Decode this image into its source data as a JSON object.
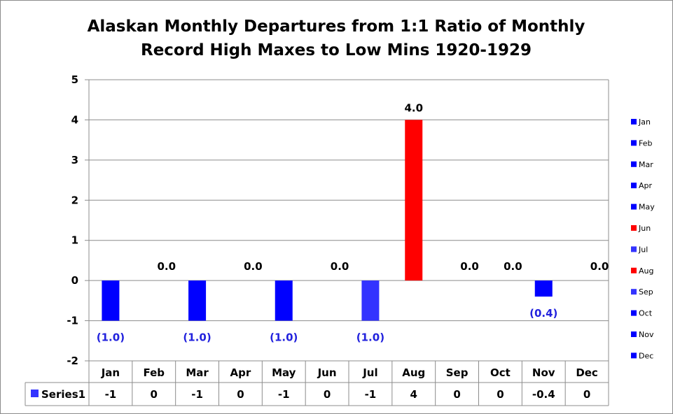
{
  "chart_data": {
    "type": "bar",
    "title": "Alaskan Monthly Departures from 1:1 Ratio of Monthly Record High Maxes to Low Mins 1920-1929",
    "title_lines": [
      "Alaskan Monthly Departures from 1:1 Ratio of Monthly",
      "Record High Maxes to Low Mins 1920-1929"
    ],
    "categories": [
      "Jan",
      "Feb",
      "Mar",
      "Apr",
      "May",
      "Jun",
      "Jul",
      "Aug",
      "Sep",
      "Oct",
      "Nov",
      "Dec"
    ],
    "series": [
      {
        "name": "Series1",
        "values": [
          -1,
          0,
          -1,
          0,
          -1,
          0,
          -1,
          4,
          0,
          0,
          -0.4,
          0
        ]
      }
    ],
    "data_labels": [
      "(1.0)",
      "0.0",
      "(1.0)",
      "0.0",
      "(1.0)",
      "0.0",
      "(1.0)",
      "4.0",
      "0.0",
      "0.0",
      "(0.4)",
      "0.0"
    ],
    "table_values": [
      "-1",
      "0",
      "-1",
      "0",
      "-1",
      "0",
      "-1",
      "4",
      "0",
      "0",
      "-0.4",
      "0"
    ],
    "bar_colors": [
      "#0000ff",
      "#0000ff",
      "#0000ff",
      "#0000ff",
      "#0000ff",
      "#ff0000",
      "#3333ff",
      "#ff0000",
      "#3333ff",
      "#0000ff",
      "#0000ff",
      "#0000ff"
    ],
    "label_colors": {
      "negative": "#2222dd",
      "positive": "#000000"
    },
    "ylim": [
      -2,
      5
    ],
    "yticks": [
      "-2",
      "-1",
      "0",
      "1",
      "2",
      "3",
      "4",
      "5"
    ],
    "grid": true,
    "legend_position": "right",
    "legend_entries": [
      "Jan",
      "Feb",
      "Mar",
      "Apr",
      "May",
      "Jun",
      "Jul",
      "Aug",
      "Sep",
      "Oct",
      "Nov",
      "Dec"
    ],
    "xlabel": "",
    "ylabel": ""
  }
}
